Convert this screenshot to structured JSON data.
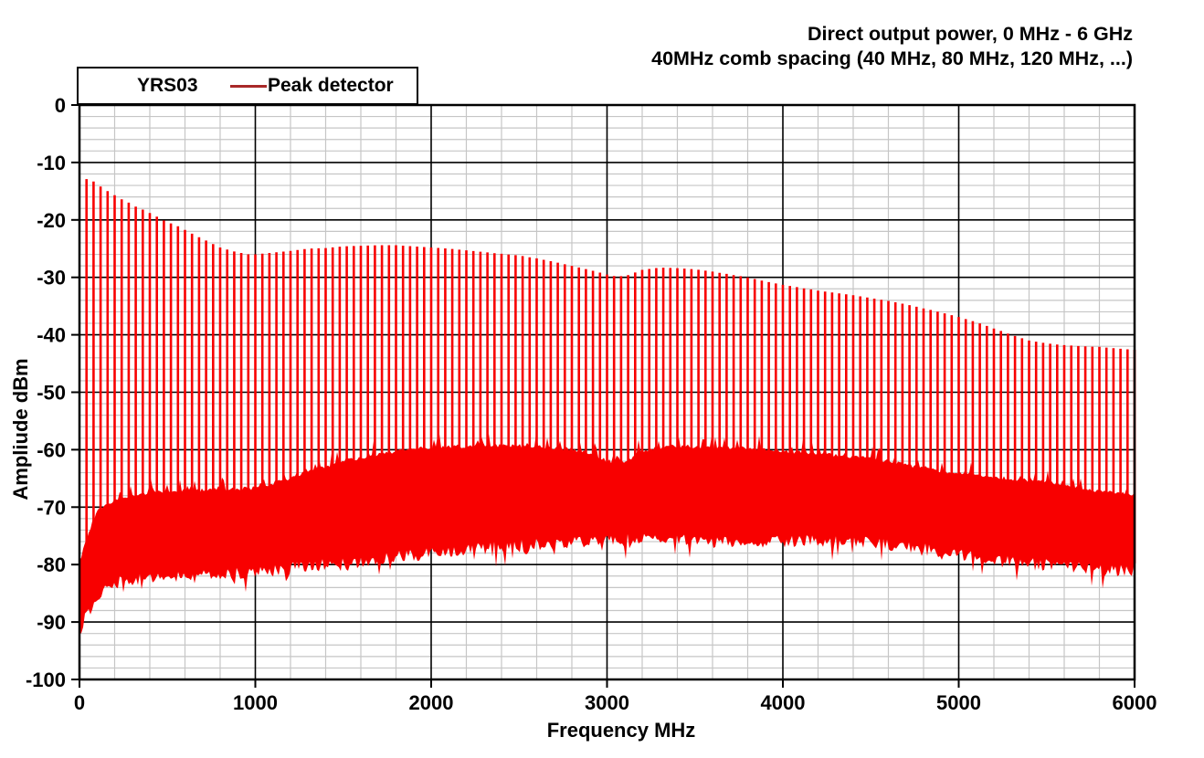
{
  "titles": {
    "line1": "Direct output power, 0 MHz - 6 GHz",
    "line2": "40MHz comb spacing (40 MHz, 80 MHz, 120 MHz, ...)"
  },
  "legend": {
    "device": "YRS03",
    "trace": "Peak detector",
    "line_color": "#a82828"
  },
  "axes": {
    "x": {
      "label": "Frequency MHz",
      "min": 0,
      "max": 6000,
      "major_ticks": [
        0,
        1000,
        2000,
        3000,
        4000,
        5000,
        6000
      ],
      "minor_step": 200
    },
    "y": {
      "label": "Ampliude dBm",
      "min": -100,
      "max": 0,
      "major_ticks": [
        0,
        -10,
        -20,
        -30,
        -40,
        -50,
        -60,
        -70,
        -80,
        -90,
        -100
      ],
      "minor_step": 2
    }
  },
  "grid": {
    "minor_color": "#c6c6c6",
    "major_color": "#000000",
    "frame_color": "#000000"
  },
  "chart_data": {
    "type": "line",
    "series_name": "Peak detector",
    "color": "#f80000",
    "comb": {
      "spacing_mhz": 40,
      "first_mhz": 40,
      "last_mhz": 6000
    },
    "comb_peak_envelope": [
      [
        40,
        -12.9
      ],
      [
        80,
        -13.3
      ],
      [
        120,
        -14.2
      ],
      [
        160,
        -15.0
      ],
      [
        200,
        -15.7
      ],
      [
        240,
        -16.4
      ],
      [
        280,
        -17.0
      ],
      [
        320,
        -17.7
      ],
      [
        360,
        -18.2
      ],
      [
        400,
        -18.8
      ],
      [
        480,
        -20.1
      ],
      [
        560,
        -21.1
      ],
      [
        640,
        -22.4
      ],
      [
        720,
        -23.6
      ],
      [
        800,
        -24.8
      ],
      [
        880,
        -25.5
      ],
      [
        960,
        -26.0
      ],
      [
        1000,
        -26.0
      ],
      [
        1100,
        -25.7
      ],
      [
        1200,
        -25.4
      ],
      [
        1300,
        -25.0
      ],
      [
        1400,
        -24.9
      ],
      [
        1500,
        -24.6
      ],
      [
        1600,
        -24.5
      ],
      [
        1700,
        -24.4
      ],
      [
        1800,
        -24.4
      ],
      [
        1900,
        -24.6
      ],
      [
        2000,
        -24.8
      ],
      [
        2100,
        -25.0
      ],
      [
        2200,
        -25.3
      ],
      [
        2300,
        -25.6
      ],
      [
        2400,
        -25.9
      ],
      [
        2500,
        -26.2
      ],
      [
        2600,
        -26.7
      ],
      [
        2700,
        -27.3
      ],
      [
        2800,
        -28.0
      ],
      [
        2900,
        -28.7
      ],
      [
        3000,
        -29.5
      ],
      [
        3060,
        -29.9
      ],
      [
        3120,
        -29.6
      ],
      [
        3200,
        -28.7
      ],
      [
        3300,
        -28.3
      ],
      [
        3400,
        -28.4
      ],
      [
        3500,
        -28.6
      ],
      [
        3600,
        -29.0
      ],
      [
        3700,
        -29.5
      ],
      [
        3800,
        -30.0
      ],
      [
        3900,
        -30.7
      ],
      [
        4000,
        -31.3
      ],
      [
        4100,
        -31.8
      ],
      [
        4200,
        -32.3
      ],
      [
        4300,
        -32.7
      ],
      [
        4400,
        -33.1
      ],
      [
        4500,
        -33.6
      ],
      [
        4600,
        -34.1
      ],
      [
        4700,
        -34.7
      ],
      [
        4800,
        -35.4
      ],
      [
        4900,
        -36.1
      ],
      [
        5000,
        -36.9
      ],
      [
        5100,
        -37.8
      ],
      [
        5200,
        -38.9
      ],
      [
        5300,
        -40.0
      ],
      [
        5400,
        -41.0
      ],
      [
        5500,
        -41.5
      ],
      [
        5600,
        -41.8
      ],
      [
        5700,
        -42.0
      ],
      [
        5800,
        -42.1
      ],
      [
        5900,
        -42.4
      ],
      [
        6000,
        -42.6
      ]
    ],
    "noise_top_envelope": [
      [
        0,
        -80.0
      ],
      [
        40,
        -76.0
      ],
      [
        80,
        -72.5
      ],
      [
        120,
        -70.5
      ],
      [
        160,
        -69.8
      ],
      [
        200,
        -69.2
      ],
      [
        300,
        -68.3
      ],
      [
        400,
        -67.9
      ],
      [
        500,
        -67.7
      ],
      [
        600,
        -67.5
      ],
      [
        700,
        -67.4
      ],
      [
        800,
        -67.3
      ],
      [
        900,
        -67.2
      ],
      [
        1000,
        -67.0
      ],
      [
        1100,
        -66.2
      ],
      [
        1200,
        -65.3
      ],
      [
        1300,
        -64.2
      ],
      [
        1400,
        -63.2
      ],
      [
        1500,
        -62.4
      ],
      [
        1600,
        -61.7
      ],
      [
        1700,
        -61.1
      ],
      [
        1800,
        -60.6
      ],
      [
        1900,
        -60.2
      ],
      [
        2000,
        -60.1
      ],
      [
        2100,
        -59.9
      ],
      [
        2200,
        -59.7
      ],
      [
        2300,
        -59.6
      ],
      [
        2400,
        -59.6
      ],
      [
        2500,
        -59.7
      ],
      [
        2600,
        -59.9
      ],
      [
        2700,
        -60.0
      ],
      [
        2800,
        -60.2
      ],
      [
        2900,
        -61.0
      ],
      [
        3000,
        -62.2
      ],
      [
        3060,
        -62.6
      ],
      [
        3120,
        -62.1
      ],
      [
        3200,
        -60.6
      ],
      [
        3300,
        -59.9
      ],
      [
        3400,
        -59.7
      ],
      [
        3500,
        -59.8
      ],
      [
        3600,
        -59.9
      ],
      [
        3700,
        -60.0
      ],
      [
        3800,
        -60.1
      ],
      [
        3900,
        -60.3
      ],
      [
        4000,
        -60.6
      ],
      [
        4100,
        -60.8
      ],
      [
        4200,
        -61.0
      ],
      [
        4300,
        -61.3
      ],
      [
        4400,
        -61.6
      ],
      [
        4500,
        -61.9
      ],
      [
        4600,
        -62.4
      ],
      [
        4700,
        -63.0
      ],
      [
        4800,
        -63.5
      ],
      [
        4900,
        -64.0
      ],
      [
        5000,
        -64.4
      ],
      [
        5100,
        -64.8
      ],
      [
        5200,
        -65.1
      ],
      [
        5300,
        -65.4
      ],
      [
        5400,
        -65.7
      ],
      [
        5500,
        -66.0
      ],
      [
        5600,
        -66.5
      ],
      [
        5700,
        -67.0
      ],
      [
        5800,
        -67.5
      ],
      [
        5900,
        -67.9
      ],
      [
        6000,
        -68.2
      ]
    ],
    "noise_bottom_envelope": [
      [
        0,
        -92.0
      ],
      [
        40,
        -89.5
      ],
      [
        80,
        -87.0
      ],
      [
        120,
        -85.5
      ],
      [
        160,
        -84.5
      ],
      [
        200,
        -83.8
      ],
      [
        300,
        -83.2
      ],
      [
        400,
        -83.0
      ],
      [
        500,
        -83.0
      ],
      [
        600,
        -82.8
      ],
      [
        700,
        -82.6
      ],
      [
        800,
        -82.3
      ],
      [
        900,
        -82.0
      ],
      [
        1000,
        -81.8
      ],
      [
        1200,
        -81.2
      ],
      [
        1400,
        -80.6
      ],
      [
        1600,
        -80.0
      ],
      [
        1800,
        -79.2
      ],
      [
        2000,
        -78.6
      ],
      [
        2200,
        -78.0
      ],
      [
        2400,
        -77.5
      ],
      [
        2600,
        -77.1
      ],
      [
        2800,
        -76.7
      ],
      [
        3000,
        -76.3
      ],
      [
        3200,
        -76.2
      ],
      [
        3400,
        -76.3
      ],
      [
        3600,
        -76.6
      ],
      [
        3800,
        -76.6
      ],
      [
        4000,
        -76.3
      ],
      [
        4200,
        -76.3
      ],
      [
        4400,
        -76.5
      ],
      [
        4600,
        -77.0
      ],
      [
        4800,
        -77.8
      ],
      [
        5000,
        -78.8
      ],
      [
        5200,
        -79.8
      ],
      [
        5400,
        -80.4
      ],
      [
        5600,
        -80.9
      ],
      [
        5800,
        -81.4
      ],
      [
        6000,
        -81.8
      ]
    ]
  }
}
